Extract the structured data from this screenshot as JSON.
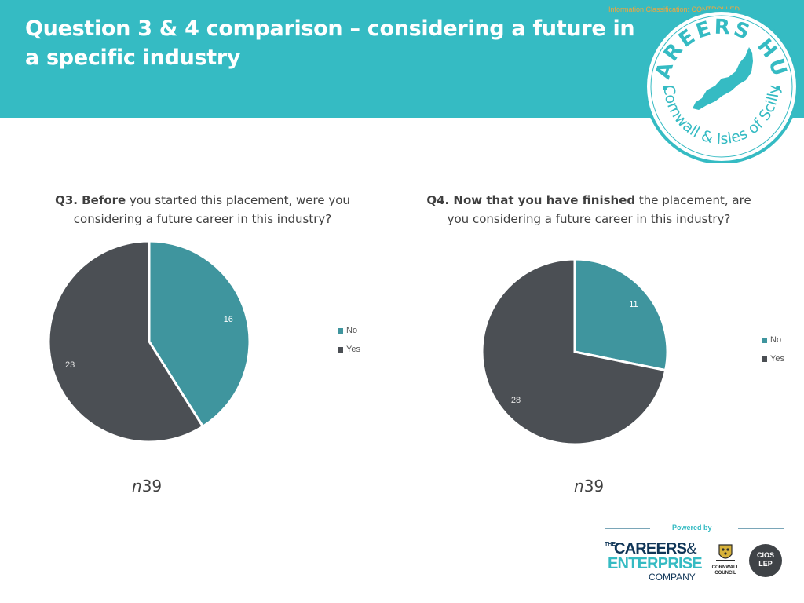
{
  "slide": {
    "title": "Question 3 & 4 comparison – considering a future in a specific industry",
    "classification": "Information Classification: CONTROLLED"
  },
  "logo": {
    "name": "Careers Hub Cornwall & Isles of Scilly",
    "ring_top": "CAREERS HUB",
    "ring_bottom": "Cornwall & Isles of Scilly"
  },
  "colors": {
    "header": "#35bbc3",
    "no": "#3f959e",
    "yes": "#4b4f54",
    "text": "#404040"
  },
  "chart_data": [
    {
      "type": "pie",
      "title_bold": "Q3. Before",
      "title_rest": " you started this placement, were you considering a future career in this industry?",
      "categories": [
        "No",
        "Yes"
      ],
      "values": [
        16,
        23
      ],
      "legend_position": "right",
      "sample_size": "39"
    },
    {
      "type": "pie",
      "title_bold": "Q4. Now that you have finished",
      "title_rest": " the placement, are you considering a future career in this industry?",
      "categories": [
        "No",
        "Yes"
      ],
      "values": [
        11,
        28
      ],
      "legend_position": "right",
      "sample_size": "39"
    }
  ],
  "n_prefix": "n",
  "footer": {
    "powered_by": "Powered by",
    "cec_the": "THE",
    "cec_line1": "CAREERS",
    "cec_amp": "&",
    "cec_line2": "ENTERPRISE",
    "cec_line3": "COMPANY",
    "council_line1": "CORNWALL",
    "council_line2": "COUNCIL",
    "lep_line1": "CIOS",
    "lep_line2": "LEP"
  }
}
